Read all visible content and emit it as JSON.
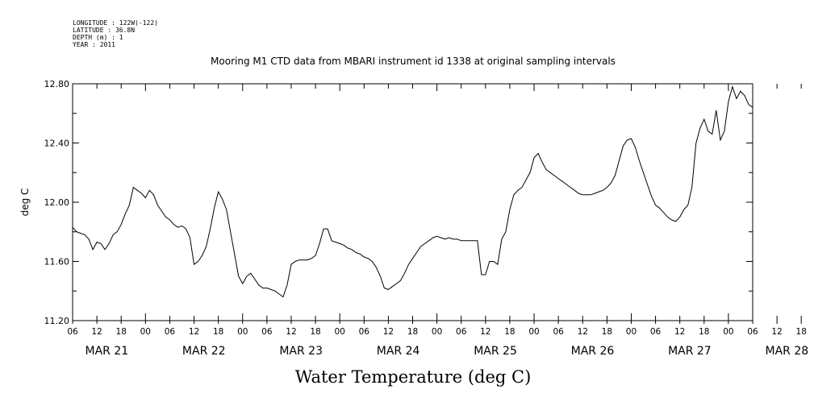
{
  "header": {
    "info_lines": [
      "LONGITUDE : 122W(-122)",
      "LATITUDE : 36.8N",
      "DEPTH (m) : 1",
      "YEAR : 2011"
    ]
  },
  "chart_data": {
    "type": "line",
    "title": "Mooring M1 CTD data from MBARI instrument id 1338 at original sampling intervals",
    "xlabel": "Water Temperature (deg C)",
    "ylabel": "deg C",
    "ylim": [
      11.2,
      12.8
    ],
    "y_ticks": [
      "11.20",
      "11.60",
      "12.00",
      "12.40",
      "12.80"
    ],
    "x_range_hours": [
      0,
      168
    ],
    "x_hour_ticks": [
      "06",
      "12",
      "18",
      "00",
      "06",
      "12",
      "18",
      "00",
      "06",
      "12",
      "18",
      "00",
      "06",
      "12",
      "18",
      "00",
      "06",
      "12",
      "18",
      "00",
      "06",
      "12",
      "18",
      "00",
      "06",
      "12",
      "18",
      "00",
      "06",
      "12",
      "18",
      "00",
      "06"
    ],
    "x_date_labels": [
      "MAR 21",
      "MAR 22",
      "MAR 23",
      "MAR 24",
      "MAR 25",
      "MAR 26",
      "MAR 27",
      "MAR 28"
    ],
    "grid": false,
    "series": [
      {
        "name": "",
        "points": [
          [
            0,
            11.83
          ],
          [
            1,
            11.8
          ],
          [
            2,
            11.79
          ],
          [
            3,
            11.78
          ],
          [
            4,
            11.75
          ],
          [
            5,
            11.68
          ],
          [
            6,
            11.73
          ],
          [
            7,
            11.72
          ],
          [
            8,
            11.68
          ],
          [
            9,
            11.72
          ],
          [
            10,
            11.78
          ],
          [
            11,
            11.8
          ],
          [
            12,
            11.85
          ],
          [
            13,
            11.92
          ],
          [
            14,
            11.98
          ],
          [
            15,
            12.1
          ],
          [
            16,
            12.08
          ],
          [
            17,
            12.06
          ],
          [
            18,
            12.03
          ],
          [
            19,
            12.08
          ],
          [
            20,
            12.05
          ],
          [
            21,
            11.98
          ],
          [
            22,
            11.94
          ],
          [
            23,
            11.9
          ],
          [
            24,
            11.88
          ],
          [
            25,
            11.85
          ],
          [
            26,
            11.83
          ],
          [
            27,
            11.84
          ],
          [
            28,
            11.82
          ],
          [
            29,
            11.76
          ],
          [
            30,
            11.58
          ],
          [
            31,
            11.6
          ],
          [
            32,
            11.64
          ],
          [
            33,
            11.7
          ],
          [
            34,
            11.82
          ],
          [
            35,
            11.96
          ],
          [
            36,
            12.07
          ],
          [
            37,
            12.02
          ],
          [
            38,
            11.95
          ],
          [
            39,
            11.8
          ],
          [
            40,
            11.65
          ],
          [
            41,
            11.5
          ],
          [
            42,
            11.45
          ],
          [
            43,
            11.5
          ],
          [
            44,
            11.52
          ],
          [
            45,
            11.48
          ],
          [
            46,
            11.44
          ],
          [
            47,
            11.42
          ],
          [
            48,
            11.42
          ],
          [
            49,
            11.41
          ],
          [
            50,
            11.4
          ],
          [
            51,
            11.38
          ],
          [
            52,
            11.36
          ],
          [
            53,
            11.44
          ],
          [
            54,
            11.58
          ],
          [
            55,
            11.6
          ],
          [
            56,
            11.61
          ],
          [
            57,
            11.61
          ],
          [
            58,
            11.61
          ],
          [
            59,
            11.62
          ],
          [
            60,
            11.64
          ],
          [
            61,
            11.72
          ],
          [
            62,
            11.82
          ],
          [
            63,
            11.82
          ],
          [
            64,
            11.74
          ],
          [
            65,
            11.73
          ],
          [
            66,
            11.72
          ],
          [
            67,
            11.71
          ],
          [
            68,
            11.69
          ],
          [
            69,
            11.68
          ],
          [
            70,
            11.66
          ],
          [
            71,
            11.65
          ],
          [
            72,
            11.63
          ],
          [
            73,
            11.62
          ],
          [
            74,
            11.6
          ],
          [
            75,
            11.56
          ],
          [
            76,
            11.5
          ],
          [
            77,
            11.42
          ],
          [
            78,
            11.41
          ],
          [
            79,
            11.43
          ],
          [
            80,
            11.45
          ],
          [
            81,
            11.47
          ],
          [
            82,
            11.52
          ],
          [
            83,
            11.58
          ],
          [
            84,
            11.62
          ],
          [
            85,
            11.66
          ],
          [
            86,
            11.7
          ],
          [
            87,
            11.72
          ],
          [
            88,
            11.74
          ],
          [
            89,
            11.76
          ],
          [
            90,
            11.77
          ],
          [
            91,
            11.76
          ],
          [
            92,
            11.75
          ],
          [
            93,
            11.76
          ],
          [
            94,
            11.75
          ],
          [
            95,
            11.75
          ],
          [
            96,
            11.74
          ],
          [
            97,
            11.74
          ],
          [
            98,
            11.74
          ],
          [
            99,
            11.74
          ],
          [
            100,
            11.74
          ],
          [
            101,
            11.51
          ],
          [
            102,
            11.51
          ],
          [
            103,
            11.6
          ],
          [
            104,
            11.6
          ],
          [
            105,
            11.58
          ],
          [
            106,
            11.75
          ],
          [
            107,
            11.8
          ],
          [
            108,
            11.95
          ],
          [
            109,
            12.05
          ],
          [
            110,
            12.08
          ],
          [
            111,
            12.1
          ],
          [
            112,
            12.15
          ],
          [
            113,
            12.2
          ],
          [
            114,
            12.3
          ],
          [
            115,
            12.33
          ],
          [
            116,
            12.27
          ],
          [
            117,
            12.22
          ],
          [
            118,
            12.2
          ],
          [
            119,
            12.18
          ],
          [
            120,
            12.16
          ],
          [
            121,
            12.14
          ],
          [
            122,
            12.12
          ],
          [
            123,
            12.1
          ],
          [
            124,
            12.08
          ],
          [
            125,
            12.06
          ],
          [
            126,
            12.05
          ],
          [
            127,
            12.05
          ],
          [
            128,
            12.05
          ],
          [
            129,
            12.06
          ],
          [
            130,
            12.07
          ],
          [
            131,
            12.08
          ],
          [
            132,
            12.1
          ],
          [
            133,
            12.13
          ],
          [
            134,
            12.18
          ],
          [
            135,
            12.28
          ],
          [
            136,
            12.38
          ],
          [
            137,
            12.42
          ],
          [
            138,
            12.43
          ],
          [
            139,
            12.37
          ],
          [
            140,
            12.28
          ],
          [
            141,
            12.2
          ],
          [
            142,
            12.12
          ],
          [
            143,
            12.04
          ],
          [
            144,
            11.98
          ],
          [
            145,
            11.96
          ],
          [
            146,
            11.93
          ],
          [
            147,
            11.9
          ],
          [
            148,
            11.88
          ],
          [
            149,
            11.87
          ],
          [
            150,
            11.9
          ],
          [
            151,
            11.95
          ],
          [
            152,
            11.98
          ],
          [
            153,
            12.1
          ],
          [
            154,
            12.4
          ],
          [
            155,
            12.5
          ],
          [
            156,
            12.56
          ],
          [
            157,
            12.48
          ],
          [
            158,
            12.46
          ],
          [
            159,
            12.62
          ],
          [
            160,
            12.42
          ],
          [
            161,
            12.48
          ],
          [
            162,
            12.68
          ],
          [
            163,
            12.78
          ],
          [
            164,
            12.7
          ],
          [
            165,
            12.75
          ],
          [
            166,
            12.72
          ],
          [
            167,
            12.66
          ],
          [
            168,
            12.64
          ]
        ]
      }
    ]
  }
}
